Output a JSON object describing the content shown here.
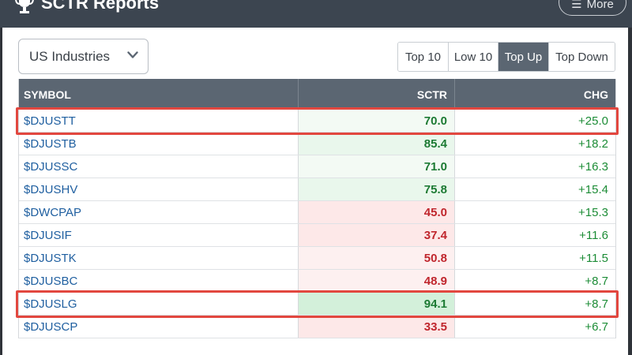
{
  "header": {
    "title": "SCTR Reports",
    "more_label": "More"
  },
  "dropdown": {
    "selected": "US Industries"
  },
  "filters": [
    {
      "label": "Top 10",
      "active": false,
      "width": 64
    },
    {
      "label": "Low 10",
      "active": false,
      "width": 63
    },
    {
      "label": "Top Up",
      "active": true,
      "width": 64
    },
    {
      "label": "Top Down",
      "active": false,
      "width": 83
    }
  ],
  "table": {
    "columns": [
      "SYMBOL",
      "SCTR",
      "CHG"
    ],
    "rows": [
      {
        "symbol": "$DJUSTT",
        "sctr": "70.0",
        "chg": "+25.0",
        "tone": "g-faint",
        "highlighted": true
      },
      {
        "symbol": "$DJUSTB",
        "sctr": "85.4",
        "chg": "+18.2",
        "tone": "g-light",
        "highlighted": false
      },
      {
        "symbol": "$DJUSSC",
        "sctr": "71.0",
        "chg": "+16.3",
        "tone": "g-faint",
        "highlighted": false
      },
      {
        "symbol": "$DJUSHV",
        "sctr": "75.8",
        "chg": "+15.4",
        "tone": "g-light",
        "highlighted": false
      },
      {
        "symbol": "$DWCPAP",
        "sctr": "45.0",
        "chg": "+15.3",
        "tone": "r-light",
        "highlighted": false
      },
      {
        "symbol": "$DJUSIF",
        "sctr": "37.4",
        "chg": "+11.6",
        "tone": "r-light",
        "highlighted": false
      },
      {
        "symbol": "$DJUSTK",
        "sctr": "50.8",
        "chg": "+11.5",
        "tone": "r-faint",
        "highlighted": false
      },
      {
        "symbol": "$DJUSBC",
        "sctr": "48.9",
        "chg": "+8.7",
        "tone": "r-faint",
        "highlighted": false
      },
      {
        "symbol": "$DJUSLG",
        "sctr": "94.1",
        "chg": "+8.7",
        "tone": "g-strong",
        "highlighted": true
      },
      {
        "symbol": "$DJUSCP",
        "sctr": "33.5",
        "chg": "+6.7",
        "tone": "r-light",
        "highlighted": false
      }
    ]
  }
}
